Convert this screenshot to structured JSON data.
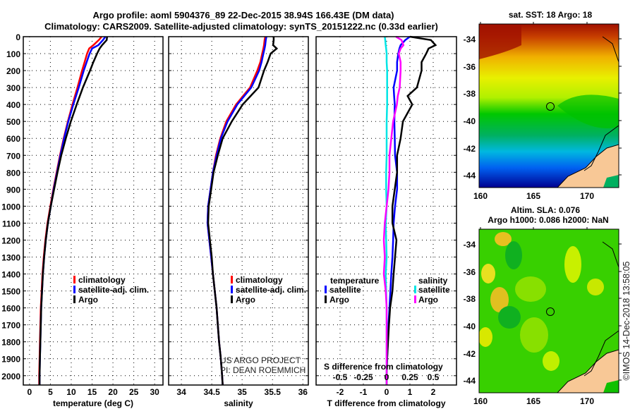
{
  "title": {
    "line1": "Argo profile: aoml 5904376_89 22-Dec-2015 38.94S 166.43E (DM data)",
    "line2": "Climatology: CARS2009. Satellite-adjusted climatology: synTS_20151222.nc (0.33d earlier)"
  },
  "credit": {
    "line1": "US ARGO PROJECT",
    "line2": "PI: DEAN ROEMMICH"
  },
  "timestamp": "©IMOS 14-Dec-2018 13:58:05",
  "colors": {
    "climatology": "#ff0000",
    "satellite": "#0000ff",
    "argo": "#000000",
    "sal_satellite": "#00e5e5",
    "sal_argo": "#ff00ff",
    "land": "#f8c896"
  },
  "chart_data": [
    {
      "type": "line",
      "id": "temperature",
      "xlabel": "temperature (deg C)",
      "ylabel": "",
      "xlim": [
        -1.5,
        32
      ],
      "ylim": [
        0,
        2055
      ],
      "y_reversed": true,
      "xticks": [
        0,
        5,
        10,
        15,
        20,
        25,
        30
      ],
      "xtick_labels": [
        "0",
        "5",
        "10",
        "15",
        "20",
        "25",
        "30"
      ],
      "yticks": [
        0,
        100,
        200,
        300,
        400,
        500,
        600,
        700,
        800,
        900,
        1000,
        1100,
        1200,
        1300,
        1400,
        1500,
        1600,
        1700,
        1800,
        1900,
        2000
      ],
      "ytick_labels": [
        "0",
        "100",
        "200",
        "300",
        "400",
        "500",
        "600",
        "700",
        "800",
        "900",
        "1000",
        "1100",
        "1200",
        "1300",
        "1400",
        "1500",
        "1600",
        "1700",
        "1800",
        "1900",
        "2000"
      ],
      "grid": true,
      "legend": {
        "placement": "lower-middle",
        "entries": [
          "climatology",
          "satellite-adj. clim.",
          "Argo"
        ]
      },
      "depth": [
        0,
        20,
        50,
        70,
        100,
        150,
        200,
        300,
        400,
        500,
        600,
        700,
        800,
        900,
        1000,
        1100,
        1200,
        1300,
        1400,
        1500,
        1600,
        1700,
        1800,
        1900,
        2000,
        2055
      ],
      "series": [
        {
          "name": "climatology",
          "color": "#ff0000",
          "values": [
            17.3,
            16.6,
            15.3,
            14.3,
            13.8,
            13.2,
            12.6,
            11.5,
            10.3,
            9.2,
            8.2,
            7.3,
            6.5,
            5.7,
            5.0,
            4.3,
            3.8,
            3.4,
            3.1,
            2.9,
            2.7,
            2.6,
            2.5,
            2.4,
            2.3,
            2.3
          ]
        },
        {
          "name": "satellite-adj. clim.",
          "color": "#0000ff",
          "values": [
            18.2,
            17.6,
            16.5,
            15.0,
            14.4,
            13.7,
            13.0,
            11.8,
            10.5,
            9.3,
            8.3,
            7.4,
            6.6,
            5.8,
            5.1,
            4.4,
            3.9,
            3.5,
            3.2,
            3.0,
            2.8,
            2.7,
            2.6,
            2.5,
            2.4,
            2.4
          ]
        },
        {
          "name": "Argo",
          "color": "#000000",
          "values": [
            18.6,
            18.5,
            17.4,
            16.8,
            16.2,
            15.3,
            14.5,
            12.8,
            11.3,
            9.9,
            8.7,
            7.6,
            6.7,
            5.9,
            5.1,
            4.4,
            3.9,
            3.5,
            3.2,
            3.0,
            2.8,
            2.7,
            2.6,
            2.5,
            2.4,
            2.4
          ]
        }
      ]
    },
    {
      "type": "line",
      "id": "salinity",
      "xlabel": "salinity",
      "xlim": [
        33.79,
        36.09
      ],
      "ylim": [
        0,
        2055
      ],
      "y_reversed": true,
      "xticks": [
        34,
        34.5,
        35,
        35.5,
        36
      ],
      "xtick_labels": [
        "34",
        "34.5",
        "35",
        "35.5",
        "36"
      ],
      "grid": true,
      "legend": {
        "placement": "lower-right",
        "entries": [
          "climatology",
          "satellite-adj. clim.",
          "Argo"
        ]
      },
      "depth": [
        0,
        20,
        50,
        70,
        100,
        150,
        200,
        300,
        400,
        500,
        600,
        700,
        800,
        900,
        1000,
        1100,
        1200,
        1300,
        1400,
        1500,
        1600,
        1700,
        1800,
        1900,
        2000,
        2055
      ],
      "series": [
        {
          "name": "climatology",
          "color": "#ff0000",
          "values": [
            35.38,
            35.37,
            35.36,
            35.35,
            35.33,
            35.3,
            35.25,
            35.13,
            34.9,
            34.74,
            34.64,
            34.57,
            34.52,
            34.48,
            34.44,
            34.43,
            34.46,
            34.49,
            34.52,
            34.55,
            34.58,
            34.6,
            34.62,
            34.65,
            34.67,
            34.68
          ]
        },
        {
          "name": "satellite-adj. clim.",
          "color": "#0000ff",
          "values": [
            35.4,
            35.39,
            35.38,
            35.37,
            35.35,
            35.32,
            35.28,
            35.15,
            34.92,
            34.76,
            34.65,
            34.58,
            34.52,
            34.48,
            34.44,
            34.43,
            34.46,
            34.49,
            34.52,
            34.55,
            34.58,
            34.6,
            34.62,
            34.65,
            34.67,
            34.68
          ]
        },
        {
          "name": "Argo",
          "color": "#000000",
          "values": [
            35.52,
            35.52,
            35.51,
            35.57,
            35.47,
            35.42,
            35.36,
            35.27,
            35.01,
            34.83,
            34.68,
            34.6,
            34.53,
            34.49,
            34.45,
            34.44,
            34.47,
            34.5,
            34.52,
            34.55,
            34.58,
            34.6,
            34.62,
            34.65,
            34.67,
            34.68
          ]
        }
      ]
    },
    {
      "type": "line",
      "id": "difference",
      "xlabel": "T difference from climatology",
      "x2label": "S difference from climatology",
      "xlim": [
        -3.03,
        3.0
      ],
      "ylim": [
        0,
        2055
      ],
      "y_reversed": true,
      "xticks": [
        -2,
        -1,
        0,
        1,
        2
      ],
      "xtick_labels": [
        "-2",
        "-1",
        "0",
        "1",
        "2"
      ],
      "x2ticks": [
        -0.5,
        -0.25,
        0,
        0.25,
        0.5
      ],
      "x2tick_labels": [
        "-0.5",
        "-0.25",
        "0",
        "0.25",
        "0.5"
      ],
      "grid": true,
      "legend": {
        "placement": "lower",
        "temperature_title": "temperature",
        "salinity_title": "salinity",
        "entries": [
          "satellite",
          "Argo",
          "satellite",
          "Argo"
        ]
      },
      "depth": [
        0,
        20,
        50,
        70,
        100,
        150,
        200,
        300,
        350,
        400,
        500,
        600,
        700,
        800,
        900,
        1000,
        1100,
        1200,
        1300,
        1400,
        1500,
        1600,
        1700,
        1800,
        1900,
        2000,
        2055
      ],
      "series": [
        {
          "name": "temperature satellite",
          "axis": "T",
          "color": "#0000ff",
          "values": [
            1.0,
            0.8,
            0.6,
            0.55,
            0.5,
            0.45,
            0.45,
            0.3,
            0.32,
            0.35,
            0.33,
            0.35,
            0.36,
            0.45,
            0.45,
            0.36,
            0.3,
            0.28,
            0.25,
            0.2,
            0.16,
            0.12,
            0.08,
            0.05,
            0.02,
            0.0,
            0.0
          ]
        },
        {
          "name": "temperature Argo",
          "axis": "T",
          "color": "#000000",
          "values": [
            1.0,
            1.9,
            2.1,
            1.8,
            1.7,
            1.5,
            1.5,
            1.3,
            0.9,
            1.1,
            0.7,
            0.6,
            0.45,
            0.45,
            0.35,
            0.25,
            0.25,
            0.42,
            0.36,
            0.3,
            0.25,
            0.15,
            0.1,
            0.06,
            0.02,
            0.0,
            0.0
          ]
        },
        {
          "name": "salinity satellite",
          "axis": "S",
          "color": "#00e5e5",
          "values": [
            -0.02,
            -0.015,
            -0.01,
            -0.005,
            0.0,
            0.0,
            0.005,
            0.005,
            0.005,
            0.005,
            0.0,
            0.0,
            0.0,
            -0.005,
            -0.005,
            0.0,
            -0.01,
            -0.005,
            0.0,
            -0.01,
            -0.005,
            0.0,
            0.0,
            0.0,
            0.0,
            0.0,
            0.0
          ]
        },
        {
          "name": "salinity Argo",
          "axis": "S",
          "color": "#ff00ff",
          "values": [
            0.1,
            0.16,
            0.18,
            0.15,
            0.13,
            0.15,
            0.15,
            0.14,
            0.12,
            0.11,
            0.07,
            0.05,
            0.03,
            0.03,
            0.02,
            0.0,
            -0.02,
            -0.03,
            -0.02,
            -0.03,
            -0.01,
            0.0,
            0.0,
            0.0,
            0.0,
            0.0,
            0.0
          ]
        }
      ]
    }
  ],
  "maps": [
    {
      "id": "sst-map",
      "title": "sat. SST: 18 Argo: 18",
      "lon_ticks": [
        "160",
        "165",
        "170"
      ],
      "lat_ticks": [
        "-34",
        "-36",
        "-38",
        "-40",
        "-42",
        "-44"
      ],
      "lon_range": [
        159.9,
        173.1
      ],
      "lat_range": [
        -45.0,
        -32.9
      ],
      "float_position": {
        "lon": 166.43,
        "lat": -38.94
      }
    },
    {
      "id": "sla-map",
      "title_line1": "Altim. SLA: 0.076",
      "title_line2": "Argo h1000: 0.086 h2000: NaN",
      "lon_ticks": [
        "160",
        "165",
        "170"
      ],
      "lat_ticks": [
        "-34",
        "-36",
        "-38",
        "-40",
        "-42",
        "-44"
      ],
      "lon_range": [
        159.9,
        173.1
      ],
      "lat_range": [
        -45.0,
        -32.9
      ],
      "float_position": {
        "lon": 166.43,
        "lat": -38.94
      }
    }
  ]
}
